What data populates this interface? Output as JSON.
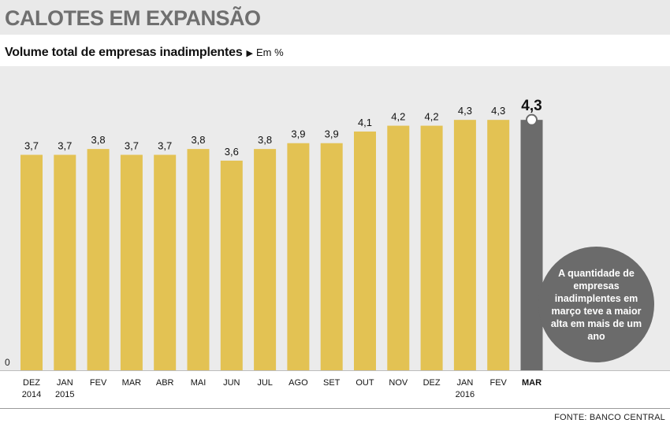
{
  "header": {
    "title": "CALOTES EM EXPANSÃO",
    "subtitle": "Volume total de empresas inadimplentes",
    "subtitle_arrow": "▶",
    "unit": "Em %"
  },
  "callout": {
    "text": "A quantidade de empresas inadimplentes em março teve a maior alta em mais de um ano"
  },
  "source": "FONTE: BANCO CENTRAL",
  "colors": {
    "bar": "#e3c253",
    "highlight_bar": "#6b6b6b",
    "background": "#ebebeb",
    "callout": "#6b6b6b"
  },
  "chart_data": {
    "type": "bar",
    "title": "CALOTES EM EXPANSÃO",
    "subtitle": "Volume total de empresas inadimplentes",
    "ylabel": "Em %",
    "ylim": [
      0,
      4.6
    ],
    "y_ticks": [
      "0"
    ],
    "grid": false,
    "categories": [
      [
        "DEZ",
        "2014"
      ],
      [
        "JAN",
        "2015"
      ],
      [
        "FEV"
      ],
      [
        "MAR"
      ],
      [
        "ABR"
      ],
      [
        "MAI"
      ],
      [
        "JUN"
      ],
      [
        "JUL"
      ],
      [
        "AGO"
      ],
      [
        "SET"
      ],
      [
        "OUT"
      ],
      [
        "NOV"
      ],
      [
        "DEZ"
      ],
      [
        "JAN",
        "2016"
      ],
      [
        "FEV"
      ],
      [
        "MAR"
      ]
    ],
    "values": [
      3.7,
      3.7,
      3.8,
      3.7,
      3.7,
      3.8,
      3.6,
      3.8,
      3.9,
      3.9,
      4.1,
      4.2,
      4.2,
      4.3,
      4.3,
      4.3
    ],
    "labels": [
      "3,7",
      "3,7",
      "3,8",
      "3,7",
      "3,7",
      "3,8",
      "3,6",
      "3,8",
      "3,9",
      "3,9",
      "4,1",
      "4,2",
      "4,2",
      "4,3",
      "4,3",
      "4,3"
    ],
    "highlight_index": 15
  }
}
